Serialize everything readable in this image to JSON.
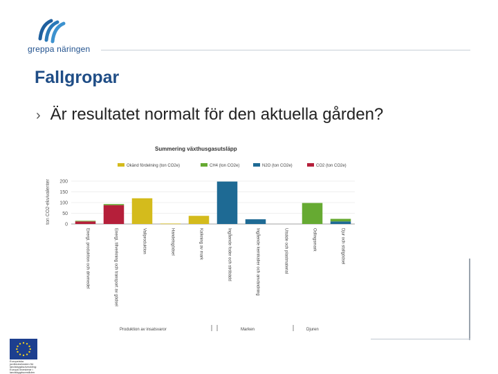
{
  "logo": {
    "text": "greppa näringen"
  },
  "slide": {
    "title": "Fallgropar",
    "bullet": "Är resultatet normalt för den aktuella gården?"
  },
  "colors": {
    "accent": "#1f4d86",
    "okand": "#d4bb1c",
    "ch4": "#66aa32",
    "n2o": "#1e6a94",
    "co2": "#b51f3a"
  },
  "eu_logo": {
    "caption": "Europeiska jordbruksfonden för landsbygdsutveckling: Europa investerar i landsbygdsområden"
  },
  "chart_data": {
    "type": "bar",
    "stacked": true,
    "title": "Summering växthusgasutsläpp",
    "ylabel": "ton CO2-ekvivalenter",
    "ylim": [
      0,
      200
    ],
    "yticks": [
      0,
      50,
      100,
      150,
      200
    ],
    "legend_position": "top",
    "categories": [
      "Energi, produktion och drivmedel",
      "Energi, tillverkning och transport av gödsel",
      "Vallproduktion",
      "Handelsgödsel",
      "Kalkning av mark",
      "Ingående foder och ströbädd",
      "Ingående kemikalier och användning",
      "Utsäde och plastmaterial",
      "Odlingsmark",
      "Djur och stallgödsel"
    ],
    "series": [
      {
        "name": "Okänd fördelning (ton CO2e)",
        "color": "#d4bb1c",
        "values": [
          0,
          0,
          120,
          2,
          38,
          0,
          0,
          0,
          0,
          0
        ]
      },
      {
        "name": "CH4 (ton CO2e)",
        "color": "#66aa32",
        "values": [
          3,
          5,
          0,
          0,
          0,
          0,
          0,
          0,
          98,
          12
        ]
      },
      {
        "name": "N2O (ton CO2e)",
        "color": "#1e6a94",
        "values": [
          0,
          0,
          0,
          0,
          0,
          198,
          22,
          0,
          0,
          12
        ]
      },
      {
        "name": "CO2 (ton CO2e)",
        "color": "#b51f3a",
        "values": [
          12,
          88,
          0,
          0,
          0,
          0,
          0,
          0,
          0,
          0
        ]
      }
    ],
    "groups": [
      {
        "label": "Produktion av insatsvaror"
      },
      {
        "label": "Marken"
      },
      {
        "label": "Djuren"
      }
    ]
  }
}
